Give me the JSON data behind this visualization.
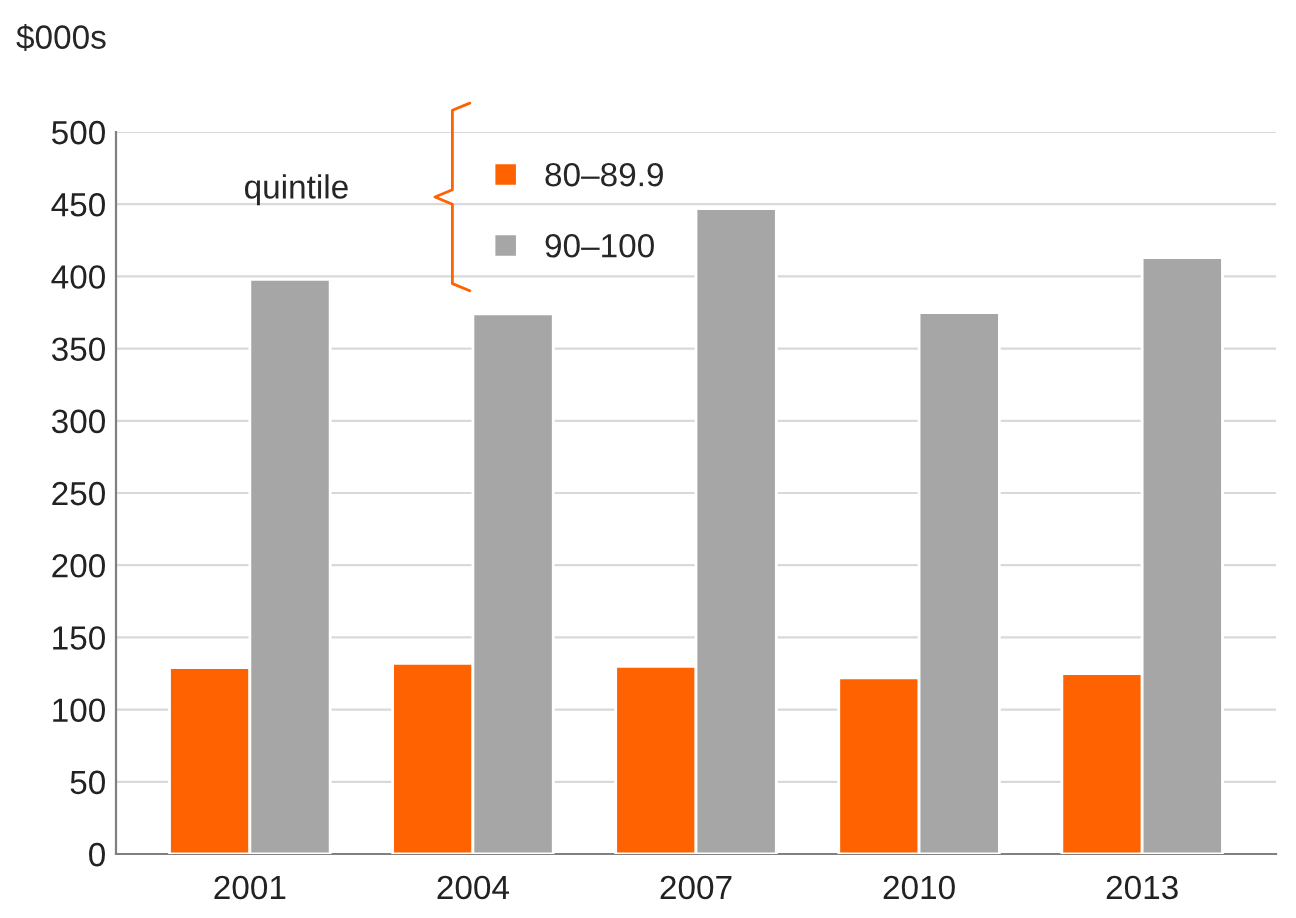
{
  "chart_data": {
    "type": "bar",
    "ylabel": "$000s",
    "legend_title": "quintile",
    "categories": [
      "2001",
      "2004",
      "2007",
      "2010",
      "2013"
    ],
    "series": [
      {
        "name": "80–89.9",
        "color": "#ff6200",
        "values": [
          129,
          132,
          130,
          122,
          125
        ]
      },
      {
        "name": "90–100",
        "color": "#a6a6a6",
        "values": [
          398,
          374,
          447,
          375,
          413
        ]
      }
    ],
    "ylim": [
      0,
      500
    ],
    "yticks": [
      0,
      50,
      100,
      150,
      200,
      250,
      300,
      350,
      400,
      450,
      500
    ],
    "grid": "y",
    "legend": "top"
  }
}
